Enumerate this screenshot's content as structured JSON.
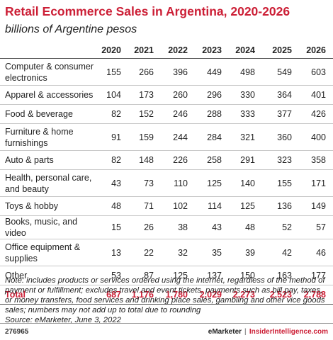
{
  "chart_data": {
    "type": "table",
    "title": "Retail Ecommerce Sales in Argentina, 2020-2026",
    "subtitle": "billions of Argentine pesos",
    "columns": [
      "2020",
      "2021",
      "2022",
      "2023",
      "2024",
      "2025",
      "2026"
    ],
    "rows": [
      {
        "label": "Computer & consumer electronics",
        "values": [
          "155",
          "266",
          "396",
          "449",
          "498",
          "549",
          "603"
        ]
      },
      {
        "label": "Apparel & accessories",
        "values": [
          "104",
          "173",
          "260",
          "296",
          "330",
          "364",
          "401"
        ]
      },
      {
        "label": "Food & beverage",
        "values": [
          "82",
          "152",
          "246",
          "288",
          "333",
          "377",
          "426"
        ]
      },
      {
        "label": "Furniture & home furnishings",
        "values": [
          "91",
          "159",
          "244",
          "284",
          "321",
          "360",
          "400"
        ]
      },
      {
        "label": "Auto & parts",
        "values": [
          "82",
          "148",
          "226",
          "258",
          "291",
          "323",
          "358"
        ]
      },
      {
        "label": "Health, personal care, and beauty",
        "values": [
          "43",
          "73",
          "110",
          "125",
          "140",
          "155",
          "171"
        ]
      },
      {
        "label": "Toys & hobby",
        "values": [
          "48",
          "71",
          "102",
          "114",
          "125",
          "136",
          "149"
        ]
      },
      {
        "label": "Books, music, and video",
        "values": [
          "15",
          "26",
          "38",
          "43",
          "48",
          "52",
          "57"
        ]
      },
      {
        "label": "Office equipment & supplies",
        "values": [
          "13",
          "22",
          "32",
          "35",
          "39",
          "42",
          "46"
        ]
      },
      {
        "label": "Other",
        "values": [
          "53",
          "87",
          "125",
          "137",
          "150",
          "163",
          "177"
        ]
      }
    ],
    "total": {
      "label": "Total",
      "values": [
        "687",
        "1,176",
        "1,780",
        "2,029",
        "2,273",
        "2,523",
        "2,788"
      ]
    }
  },
  "note": "Note: includes products or services ordered using the internet, regardless of the method of payment or fulfillment; excludes travel and event tickets, payments such as bill pay, taxes, or money transfers, food services and drinking place sales, gambling and other vice goods sales; numbers may not add up to total due to rounding",
  "source": "Source: eMarketer, June 3, 2022",
  "footer": {
    "chart_id": "276965",
    "brand_left": "eMarketer",
    "separator": "|",
    "brand_right": "InsiderIntelligence.com"
  },
  "colors": {
    "accent": "#cc1f36",
    "text": "#222222"
  }
}
